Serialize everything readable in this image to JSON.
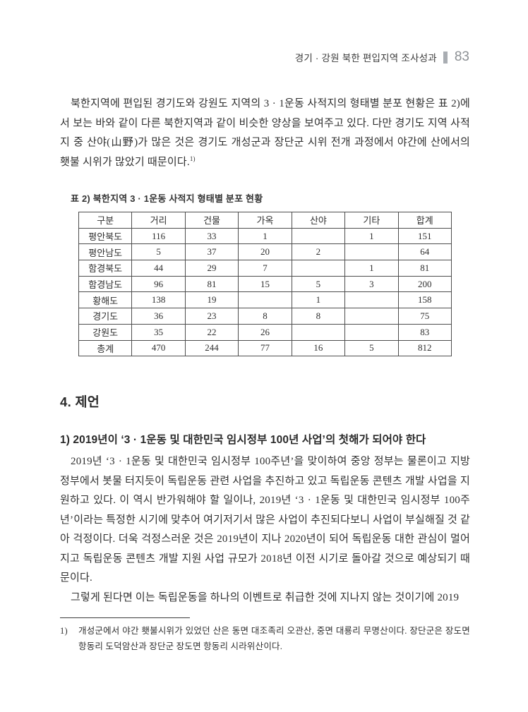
{
  "header": {
    "running_title": "경기 · 강원 북한 편입지역 조사성과",
    "page_number": "83"
  },
  "intro": {
    "text": "북한지역에 편입된 경기도와 강원도 지역의 3 · 1운동 사적지의 형태별 분포 현황은 표 2)에서 보는 바와 같이 다른 북한지역과 같이 비슷한 양상을 보여주고 있다. 다만 경기도 지역 사적지 중 산야(山野)가 많은 것은 경기도 개성군과 장단군 시위 전개 과정에서 야간에 산에서의 횃불 시위가 많았기 때문이다.",
    "footnote_ref": "1)"
  },
  "table": {
    "caption": "표 2) 북한지역 3 · 1운동 사적지 형태별 분포 현황",
    "columns": [
      "구분",
      "거리",
      "건물",
      "가옥",
      "산야",
      "기타",
      "합계"
    ],
    "rows": [
      [
        "평안북도",
        "116",
        "33",
        "1",
        "",
        "1",
        "151"
      ],
      [
        "평안남도",
        "5",
        "37",
        "20",
        "2",
        "",
        "64"
      ],
      [
        "함경북도",
        "44",
        "29",
        "7",
        "",
        "1",
        "81"
      ],
      [
        "함경남도",
        "96",
        "81",
        "15",
        "5",
        "3",
        "200"
      ],
      [
        "황해도",
        "138",
        "19",
        "",
        "1",
        "",
        "158"
      ],
      [
        "경기도",
        "36",
        "23",
        "8",
        "8",
        "",
        "75"
      ],
      [
        "강원도",
        "35",
        "22",
        "26",
        "",
        "",
        "83"
      ],
      [
        "총계",
        "470",
        "244",
        "77",
        "16",
        "5",
        "812"
      ]
    ]
  },
  "section": {
    "heading": "4. 제언",
    "subsection_heading": "1) 2019년이 ‘3 · 1운동 및 대한민국 임시정부 100년 사업’의 첫해가 되어야 한다",
    "paragraphs": [
      "2019년 ‘3 · 1운동 및 대한민국 임시정부 100주년’을 맞이하여 중앙 정부는 물론이고 지방정부에서 봇물 터지듯이 독립운동 관련 사업을 추진하고 있고 독립운동 콘텐츠 개발 사업을 지원하고 있다. 이 역시 반가워해야 할 일이나, 2019년 ‘3 · 1운동 및 대한민국 임시정부 100주년’이라는 특정한 시기에 맞추어 여기저기서 많은 사업이 추진되다보니 사업이 부실해질 것 같아 걱정이다. 더욱 걱정스러운 것은 2019년이 지나 2020년이 되어 독립운동 대한 관심이 멀어지고 독립운동 콘텐츠 개발 지원 사업 규모가 2018년 이전 시기로 돌아갈 것으로 예상되기 때문이다.",
      "그렇게 된다면 이는 독립운동을 하나의 이벤트로 취급한 것에 지나지 않는 것이기에 2019"
    ]
  },
  "footnote": {
    "marker": "1)",
    "text": "개성군에서 야간 횃불시위가 있었던 산은 동면 대조족리 오관산, 중면 대룡리 무명산이다. 장단군은 장도면 항동리 도덕암산과 장단군 장도면 항동리 시라위산이다."
  },
  "colors": {
    "page_background": "#ffffff",
    "body_text": "#2f2f2f",
    "muted_gray": "#8c9094",
    "table_border": "#4d4d4d"
  }
}
